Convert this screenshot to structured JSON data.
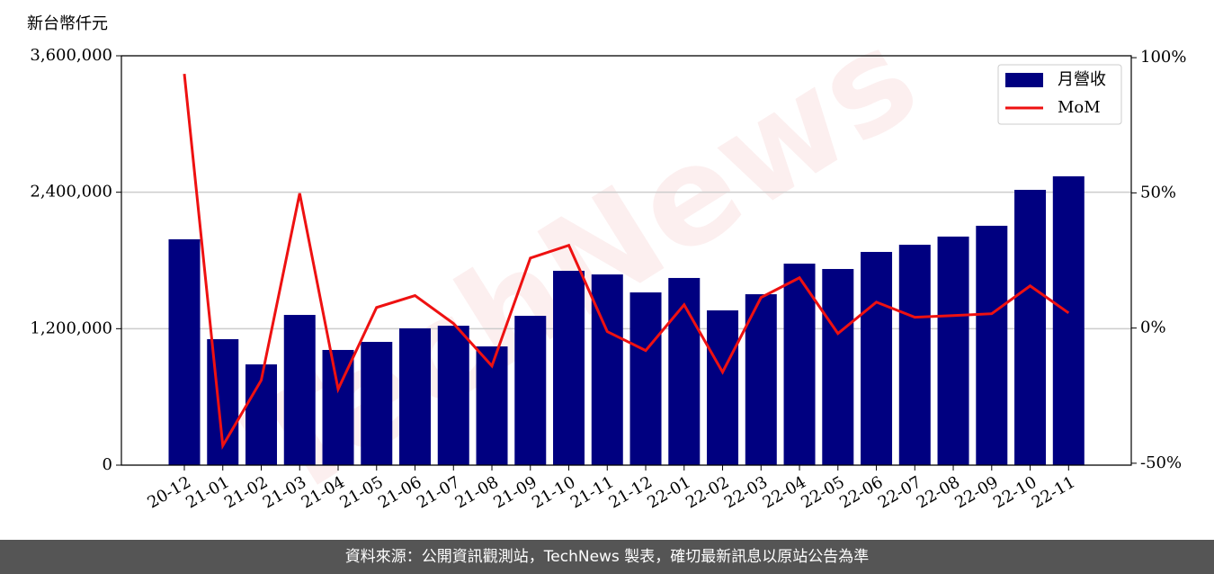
{
  "chart_data": {
    "type": "bar_line",
    "y_label": "新台幣仟元",
    "watermark": "TechNews",
    "footer": "資料來源：公開資訊觀測站，TechNews 製表，確切最新訊息以原站公告為準",
    "categories": [
      "20-12",
      "21-01",
      "21-02",
      "21-03",
      "21-04",
      "21-05",
      "21-06",
      "21-07",
      "21-08",
      "21-09",
      "21-10",
      "21-11",
      "21-12",
      "22-01",
      "22-02",
      "22-03",
      "22-04",
      "22-05",
      "22-06",
      "22-07",
      "22-08",
      "22-09",
      "22-10",
      "22-11"
    ],
    "series": [
      {
        "name": "月營收",
        "type": "bar",
        "color": "#000080",
        "values": [
          1986000,
          1108000,
          886000,
          1321000,
          1013000,
          1084000,
          1203000,
          1226000,
          1044000,
          1313000,
          1709000,
          1677000,
          1519000,
          1646000,
          1361000,
          1503000,
          1772000,
          1725000,
          1875000,
          1938000,
          2010000,
          2105000,
          2421000,
          2540000
        ]
      },
      {
        "name": "MoM",
        "type": "line",
        "axis": "y2",
        "color": "#ee1111",
        "values": [
          94,
          -43.5,
          -19.3,
          49.8,
          -22.6,
          7.6,
          12,
          1.7,
          -14,
          25.9,
          30.6,
          -1.3,
          -8.3,
          8.6,
          -16.3,
          11.3,
          18.6,
          -2,
          9.6,
          4,
          4.6,
          5.3,
          15.6,
          5.6
        ]
      }
    ],
    "ylim": [
      0,
      3600000
    ],
    "yticks": [
      0,
      {
        "value": 1200000,
        "label": "1,200,000"
      },
      {
        "value": 2400000,
        "label": "2,400,000"
      },
      {
        "value": 3600000,
        "label": "3,600,000"
      }
    ],
    "y2lim": [
      -50.7,
      100.7
    ],
    "y2ticks": [
      {
        "value": -50,
        "label": "-50%"
      },
      {
        "value": 0,
        "label": "0%"
      },
      {
        "value": 50,
        "label": "50%"
      },
      {
        "value": 100,
        "label": "100%"
      }
    ],
    "grid": true,
    "legend": "upper right"
  }
}
